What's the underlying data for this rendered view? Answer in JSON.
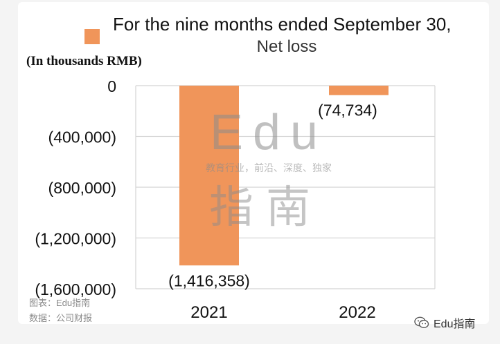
{
  "chart_data": {
    "type": "bar",
    "title": "For the nine months ended September 30,",
    "subtitle": "Net loss",
    "unit_label": "(In thousands RMB)",
    "categories": [
      "2021",
      "2022"
    ],
    "series": [
      {
        "name": "Net loss",
        "values": [
          -1416358,
          -74734
        ],
        "data_labels": [
          "(1,416,358)",
          "(74,734)"
        ]
      }
    ],
    "ylim": [
      -1600000,
      0
    ],
    "yticks": [
      0,
      -400000,
      -800000,
      -1200000,
      -1600000
    ],
    "ytick_labels": [
      "0",
      "(400,000)",
      "(800,000)",
      "(1,200,000)",
      "(1,600,000)"
    ],
    "grid": true,
    "legend_position": "top-left",
    "colors": {
      "bar": "#f0955a",
      "grid": "#d4d4d4"
    }
  },
  "watermark": {
    "edu": "Edu",
    "tagline": "教育行业，前沿、深度、独家",
    "brand": "指南"
  },
  "footer": {
    "source_chart": "图表：Edu指南",
    "source_data": "数据：公司财报",
    "wechat_account": "Edu指南"
  }
}
